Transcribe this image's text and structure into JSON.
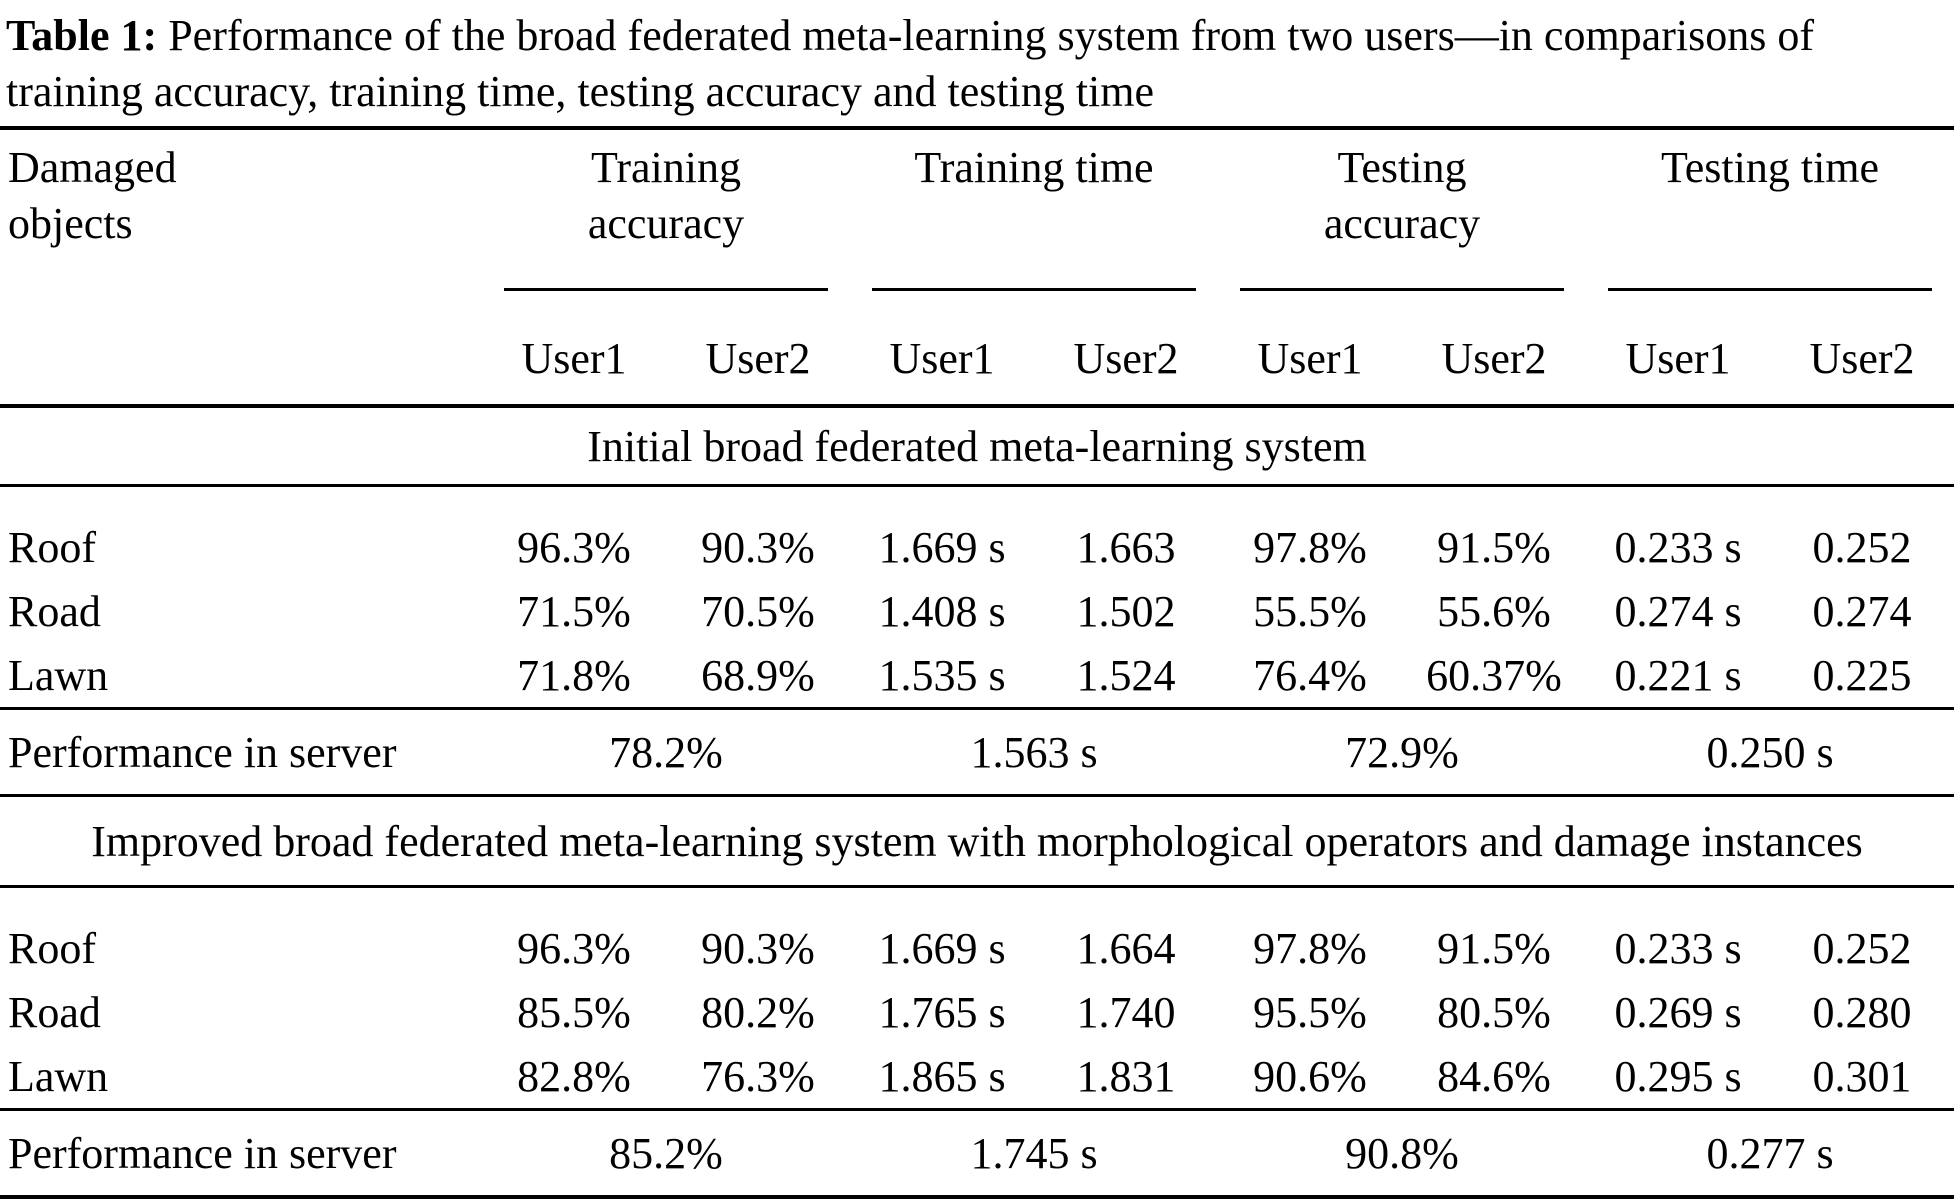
{
  "title": {
    "label": "Table 1:",
    "text": "Performance of the broad federated meta-learning system from two users—in comparisons of training accuracy, training time, testing accuracy and testing time"
  },
  "table": {
    "row_header": "Damaged objects",
    "groups": [
      {
        "label": "Training accuracy"
      },
      {
        "label": "Training time"
      },
      {
        "label": "Testing accuracy"
      },
      {
        "label": "Testing time"
      }
    ],
    "subheaders": [
      "User1",
      "User2",
      "User1",
      "User2",
      "User1",
      "User2",
      "User1",
      "User2"
    ],
    "sections": [
      {
        "banner": "Initial broad federated meta-learning system",
        "rows": [
          {
            "label": "Roof",
            "values": [
              "96.3%",
              "90.3%",
              "1.669 s",
              "1.663",
              "97.8%",
              "91.5%",
              "0.233 s",
              "0.252"
            ]
          },
          {
            "label": "Road",
            "values": [
              "71.5%",
              "70.5%",
              "1.408 s",
              "1.502",
              "55.5%",
              "55.6%",
              "0.274 s",
              "0.274"
            ]
          },
          {
            "label": "Lawn",
            "values": [
              "71.8%",
              "68.9%",
              "1.535 s",
              "1.524",
              "76.4%",
              "60.37%",
              "0.221 s",
              "0.225"
            ]
          }
        ],
        "server_row": {
          "label": "Performance in server",
          "values": [
            "78.2%",
            "1.563 s",
            "72.9%",
            "0.250 s"
          ]
        }
      },
      {
        "banner": "Improved broad federated meta-learning system with morphological operators and damage instances",
        "rows": [
          {
            "label": "Roof",
            "values": [
              "96.3%",
              "90.3%",
              "1.669 s",
              "1.664",
              "97.8%",
              "91.5%",
              "0.233 s",
              "0.252"
            ]
          },
          {
            "label": "Road",
            "values": [
              "85.5%",
              "80.2%",
              "1.765 s",
              "1.740",
              "95.5%",
              "80.5%",
              "0.269 s",
              "0.280"
            ]
          },
          {
            "label": "Lawn",
            "values": [
              "82.8%",
              "76.3%",
              "1.865 s",
              "1.831",
              "90.6%",
              "84.6%",
              "0.295 s",
              "0.301"
            ]
          }
        ],
        "server_row": {
          "label": "Performance in server",
          "values": [
            "85.2%",
            "1.745 s",
            "90.8%",
            "0.277 s"
          ]
        }
      }
    ]
  },
  "colors": {
    "text": "#000000",
    "background": "#ffffff",
    "rule": "#000000"
  }
}
